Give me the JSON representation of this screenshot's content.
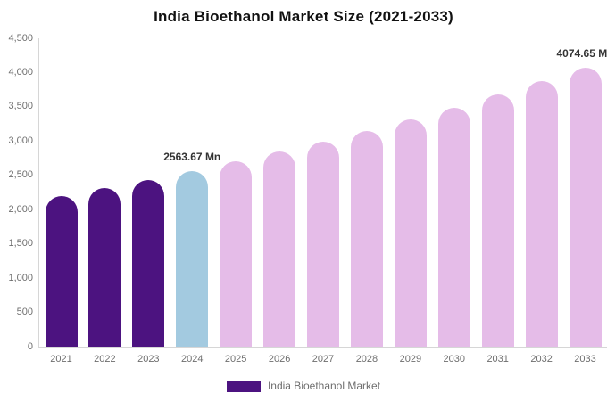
{
  "chart_data": {
    "type": "bar",
    "title": "India Bioethanol Market Size (2021-2033)",
    "xlabel": "",
    "ylabel": "",
    "categories": [
      "2021",
      "2022",
      "2023",
      "2024",
      "2025",
      "2026",
      "2027",
      "2028",
      "2029",
      "2030",
      "2031",
      "2032",
      "2033"
    ],
    "values": [
      2197,
      2313,
      2435,
      2563.67,
      2699,
      2842,
      2992,
      3150,
      3316,
      3491,
      3675,
      3870,
      4074.65
    ],
    "labeled_points": [
      {
        "category": "2024",
        "label": "2563.67 Mn"
      },
      {
        "category": "2033",
        "label": "4074.65 Mn"
      }
    ],
    "ylim": [
      0,
      4500
    ],
    "y_tick_step": 500,
    "y_tick_labels": [
      "0",
      "500",
      "1,000",
      "1,500",
      "2,000",
      "2,500",
      "3,000",
      "3,500",
      "4,000",
      "4,500"
    ],
    "grid": false,
    "legend": {
      "position": "bottom",
      "label": "India Bioethanol Market",
      "swatch_color": "#4C1380"
    },
    "colors": {
      "historical_bar": "#4C1380",
      "highlight_bar": "#A3CAE0",
      "forecast_bar": "#E5BCE8",
      "axis_line": "#D6D6D6",
      "tick_text": "#6E6E6E",
      "data_label_text": "#333333",
      "title_text": "#111111"
    },
    "bar_colors": [
      "#4C1380",
      "#4C1380",
      "#4C1380",
      "#A3CAE0",
      "#E5BCE8",
      "#E5BCE8",
      "#E5BCE8",
      "#E5BCE8",
      "#E5BCE8",
      "#E5BCE8",
      "#E5BCE8",
      "#E5BCE8",
      "#E5BCE8"
    ]
  }
}
